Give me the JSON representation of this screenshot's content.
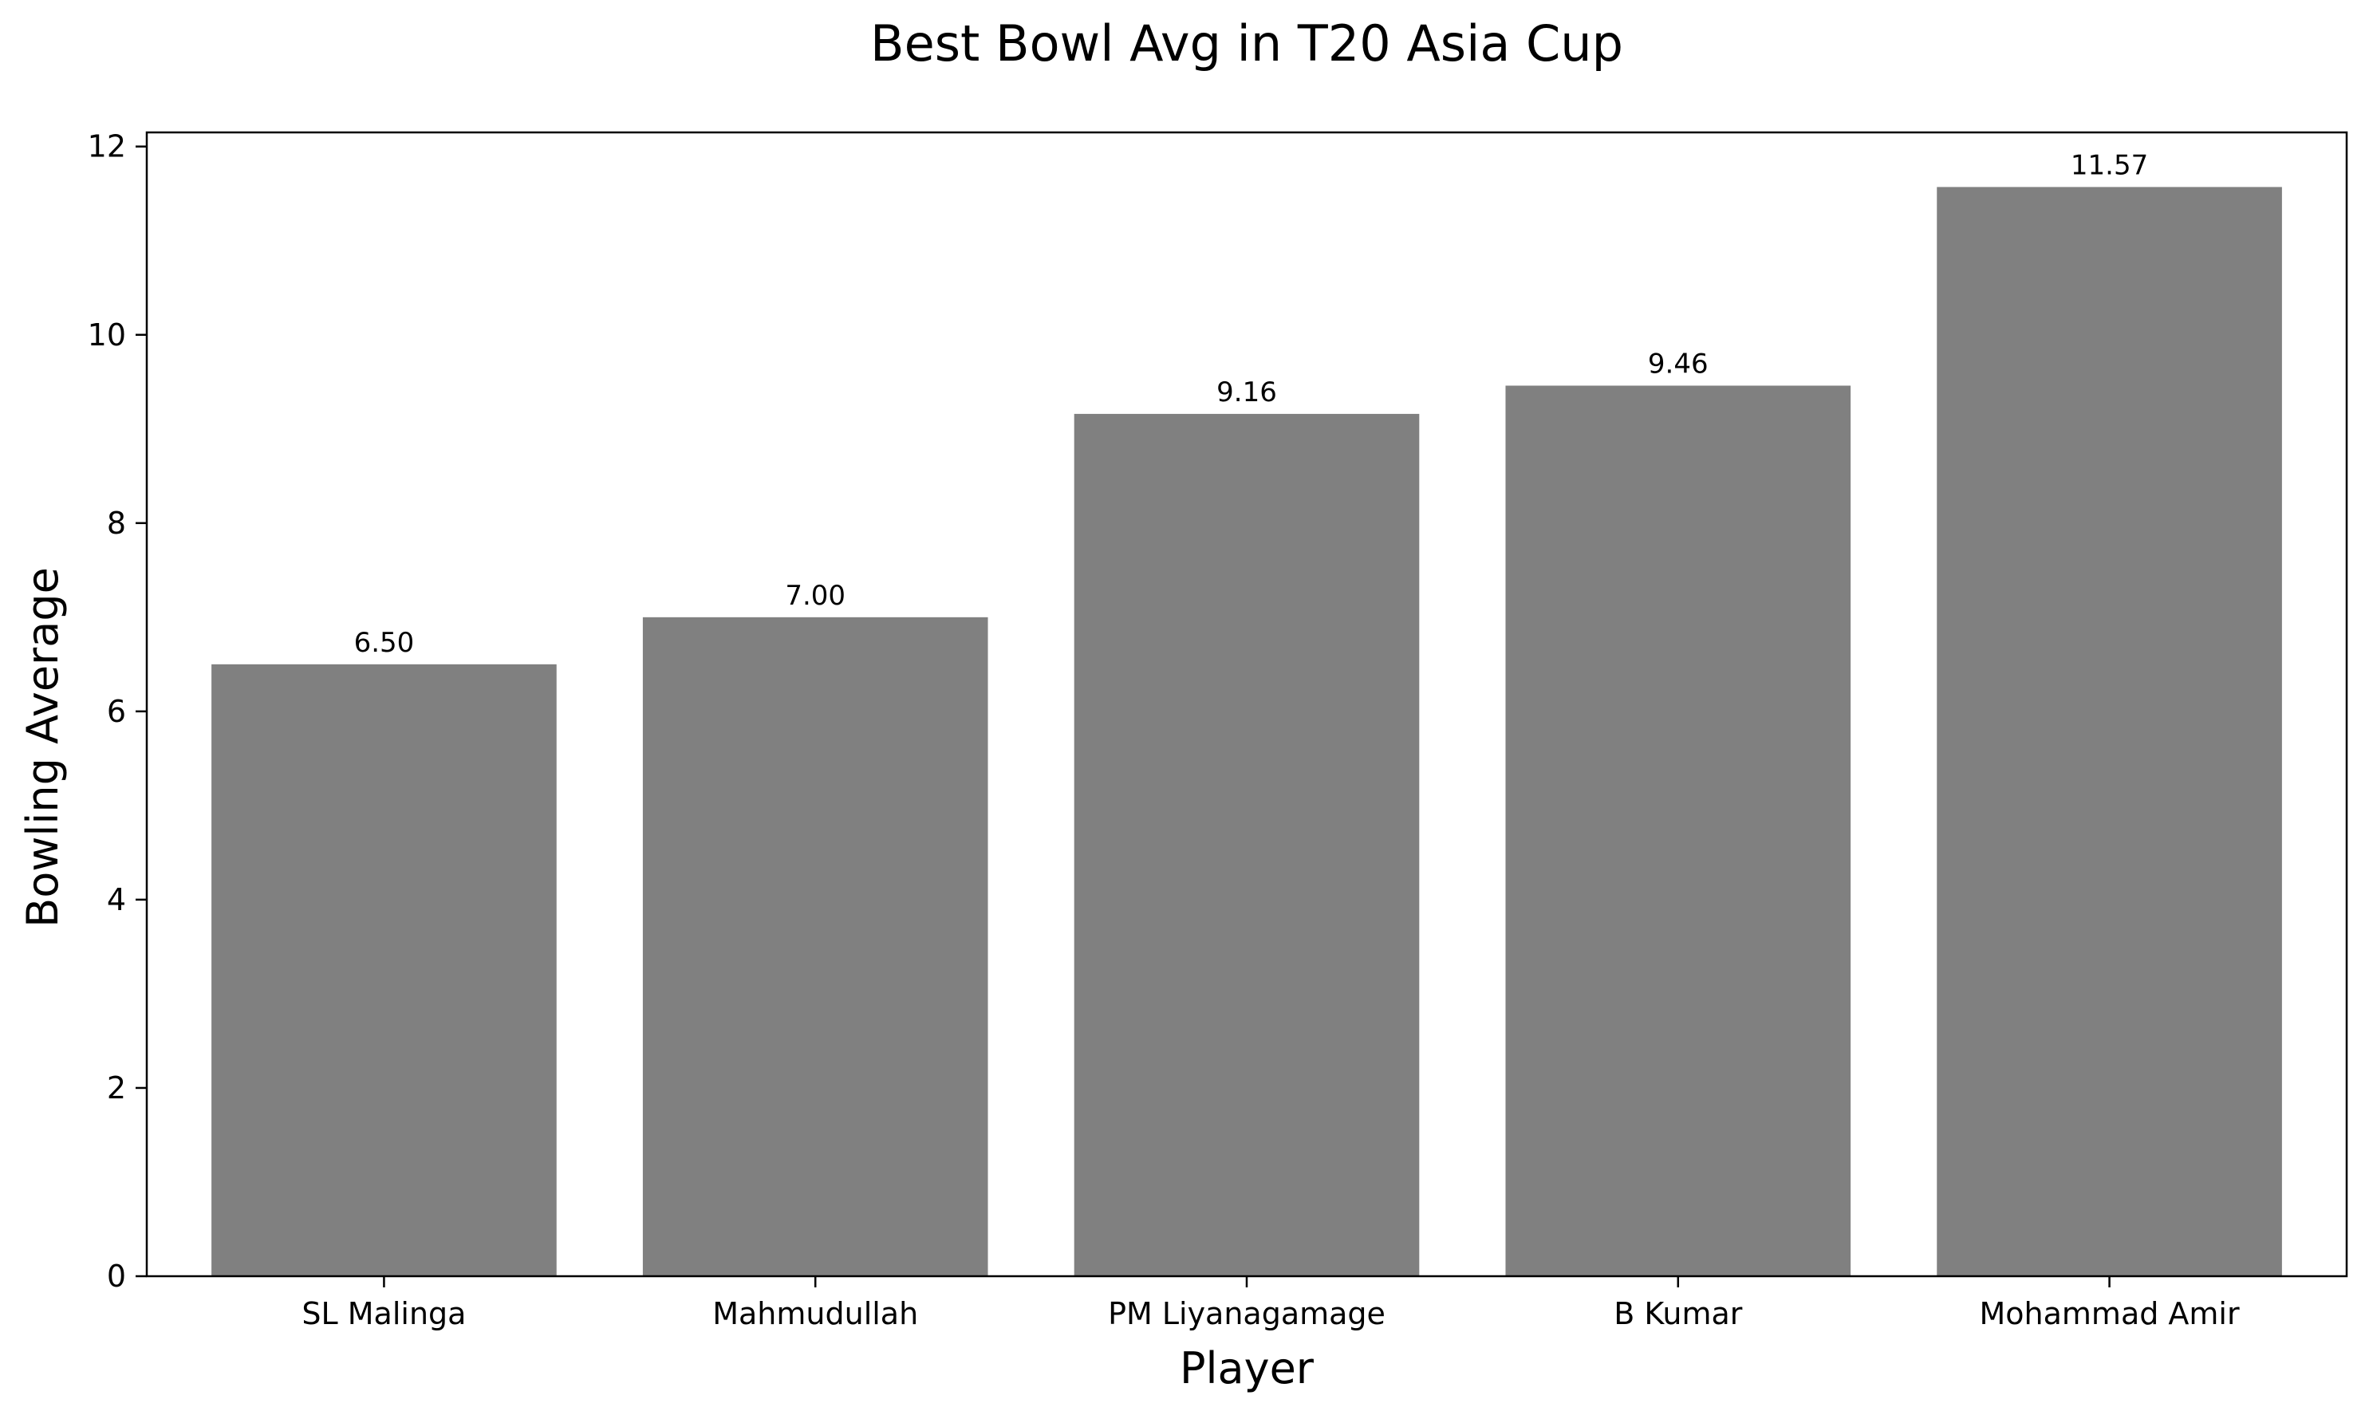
{
  "chart_data": {
    "type": "bar",
    "title": "Best Bowl Avg in T20 Asia Cup",
    "xlabel": "Player",
    "ylabel": "Bowling Average",
    "categories": [
      "SL Malinga",
      "Mahmudullah",
      "PM Liyanagamage",
      "B Kumar",
      "Mohammad Amir"
    ],
    "values": [
      6.5,
      7.0,
      9.16,
      9.46,
      11.57
    ],
    "value_labels": [
      "6.50",
      "7.00",
      "9.16",
      "9.46",
      "11.57"
    ],
    "ylim": [
      0,
      12.15
    ],
    "yticks": [
      0,
      2,
      4,
      6,
      8,
      10,
      12
    ],
    "bar_color": "#808080",
    "grid": false,
    "legend": "none"
  }
}
